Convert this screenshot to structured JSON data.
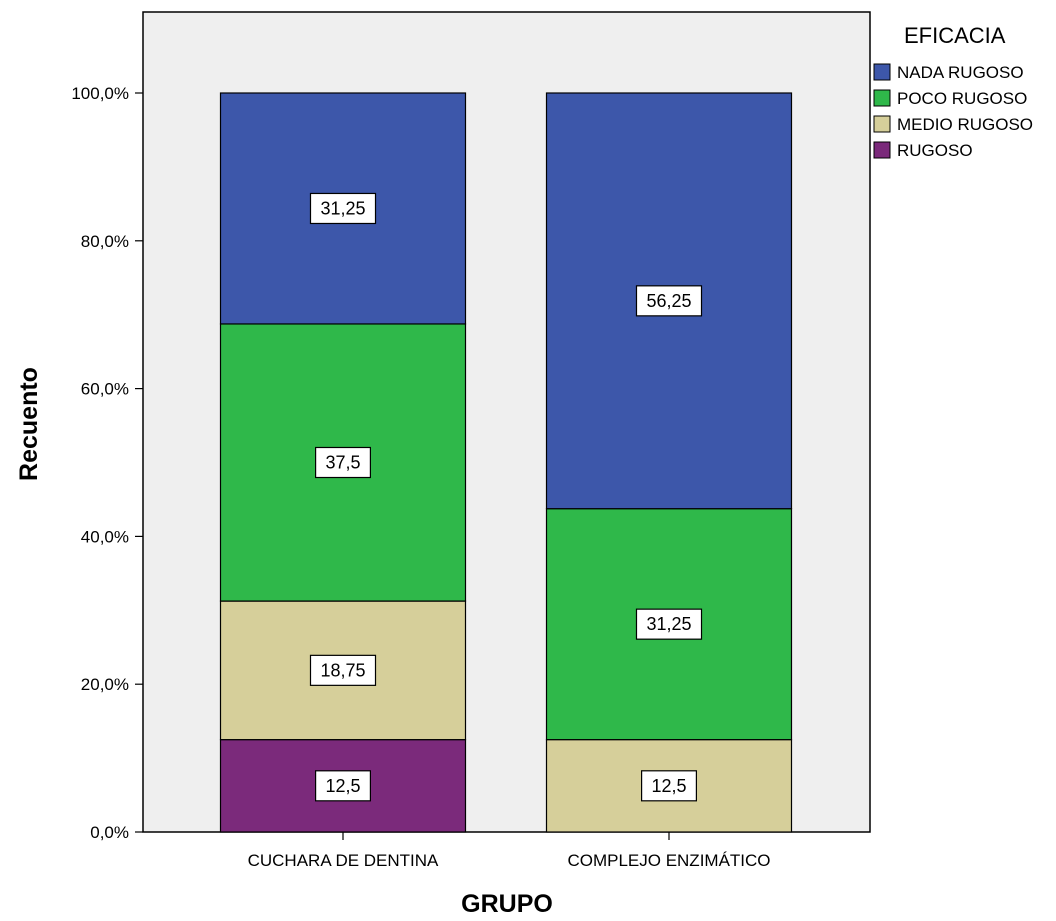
{
  "chart_data": {
    "type": "bar",
    "stacked": true,
    "xlabel": "GRUPO",
    "ylabel": "Recuento",
    "ylim": [
      0,
      100
    ],
    "yticks": [
      "0,0%",
      "20,0%",
      "40,0%",
      "60,0%",
      "80,0%",
      "100,0%"
    ],
    "categories": [
      "CUCHARA DE DENTINA",
      "COMPLEJO ENZIMÁTICO"
    ],
    "legend": {
      "title": "EFICACIA",
      "position": "top-right",
      "entries": [
        "NADA RUGOSO",
        "POCO RUGOSO",
        "MEDIO RUGOSO",
        "RUGOSO"
      ]
    },
    "series": [
      {
        "name": "RUGOSO",
        "color": "#7b2a7b",
        "values": [
          12.5,
          0
        ],
        "labels": [
          "12,5",
          ""
        ]
      },
      {
        "name": "MEDIO RUGOSO",
        "color": "#d6cf9a",
        "values": [
          18.75,
          12.5
        ],
        "labels": [
          "18,75",
          "12,5"
        ]
      },
      {
        "name": "POCO RUGOSO",
        "color": "#2fb84a",
        "values": [
          37.5,
          31.25
        ],
        "labels": [
          "37,5",
          "31,25"
        ]
      },
      {
        "name": "NADA RUGOSO",
        "color": "#3d57aa",
        "values": [
          31.25,
          56.25
        ],
        "labels": [
          "31,25",
          "56,25"
        ]
      }
    ],
    "plot_background": "#efefef",
    "grid": false
  }
}
